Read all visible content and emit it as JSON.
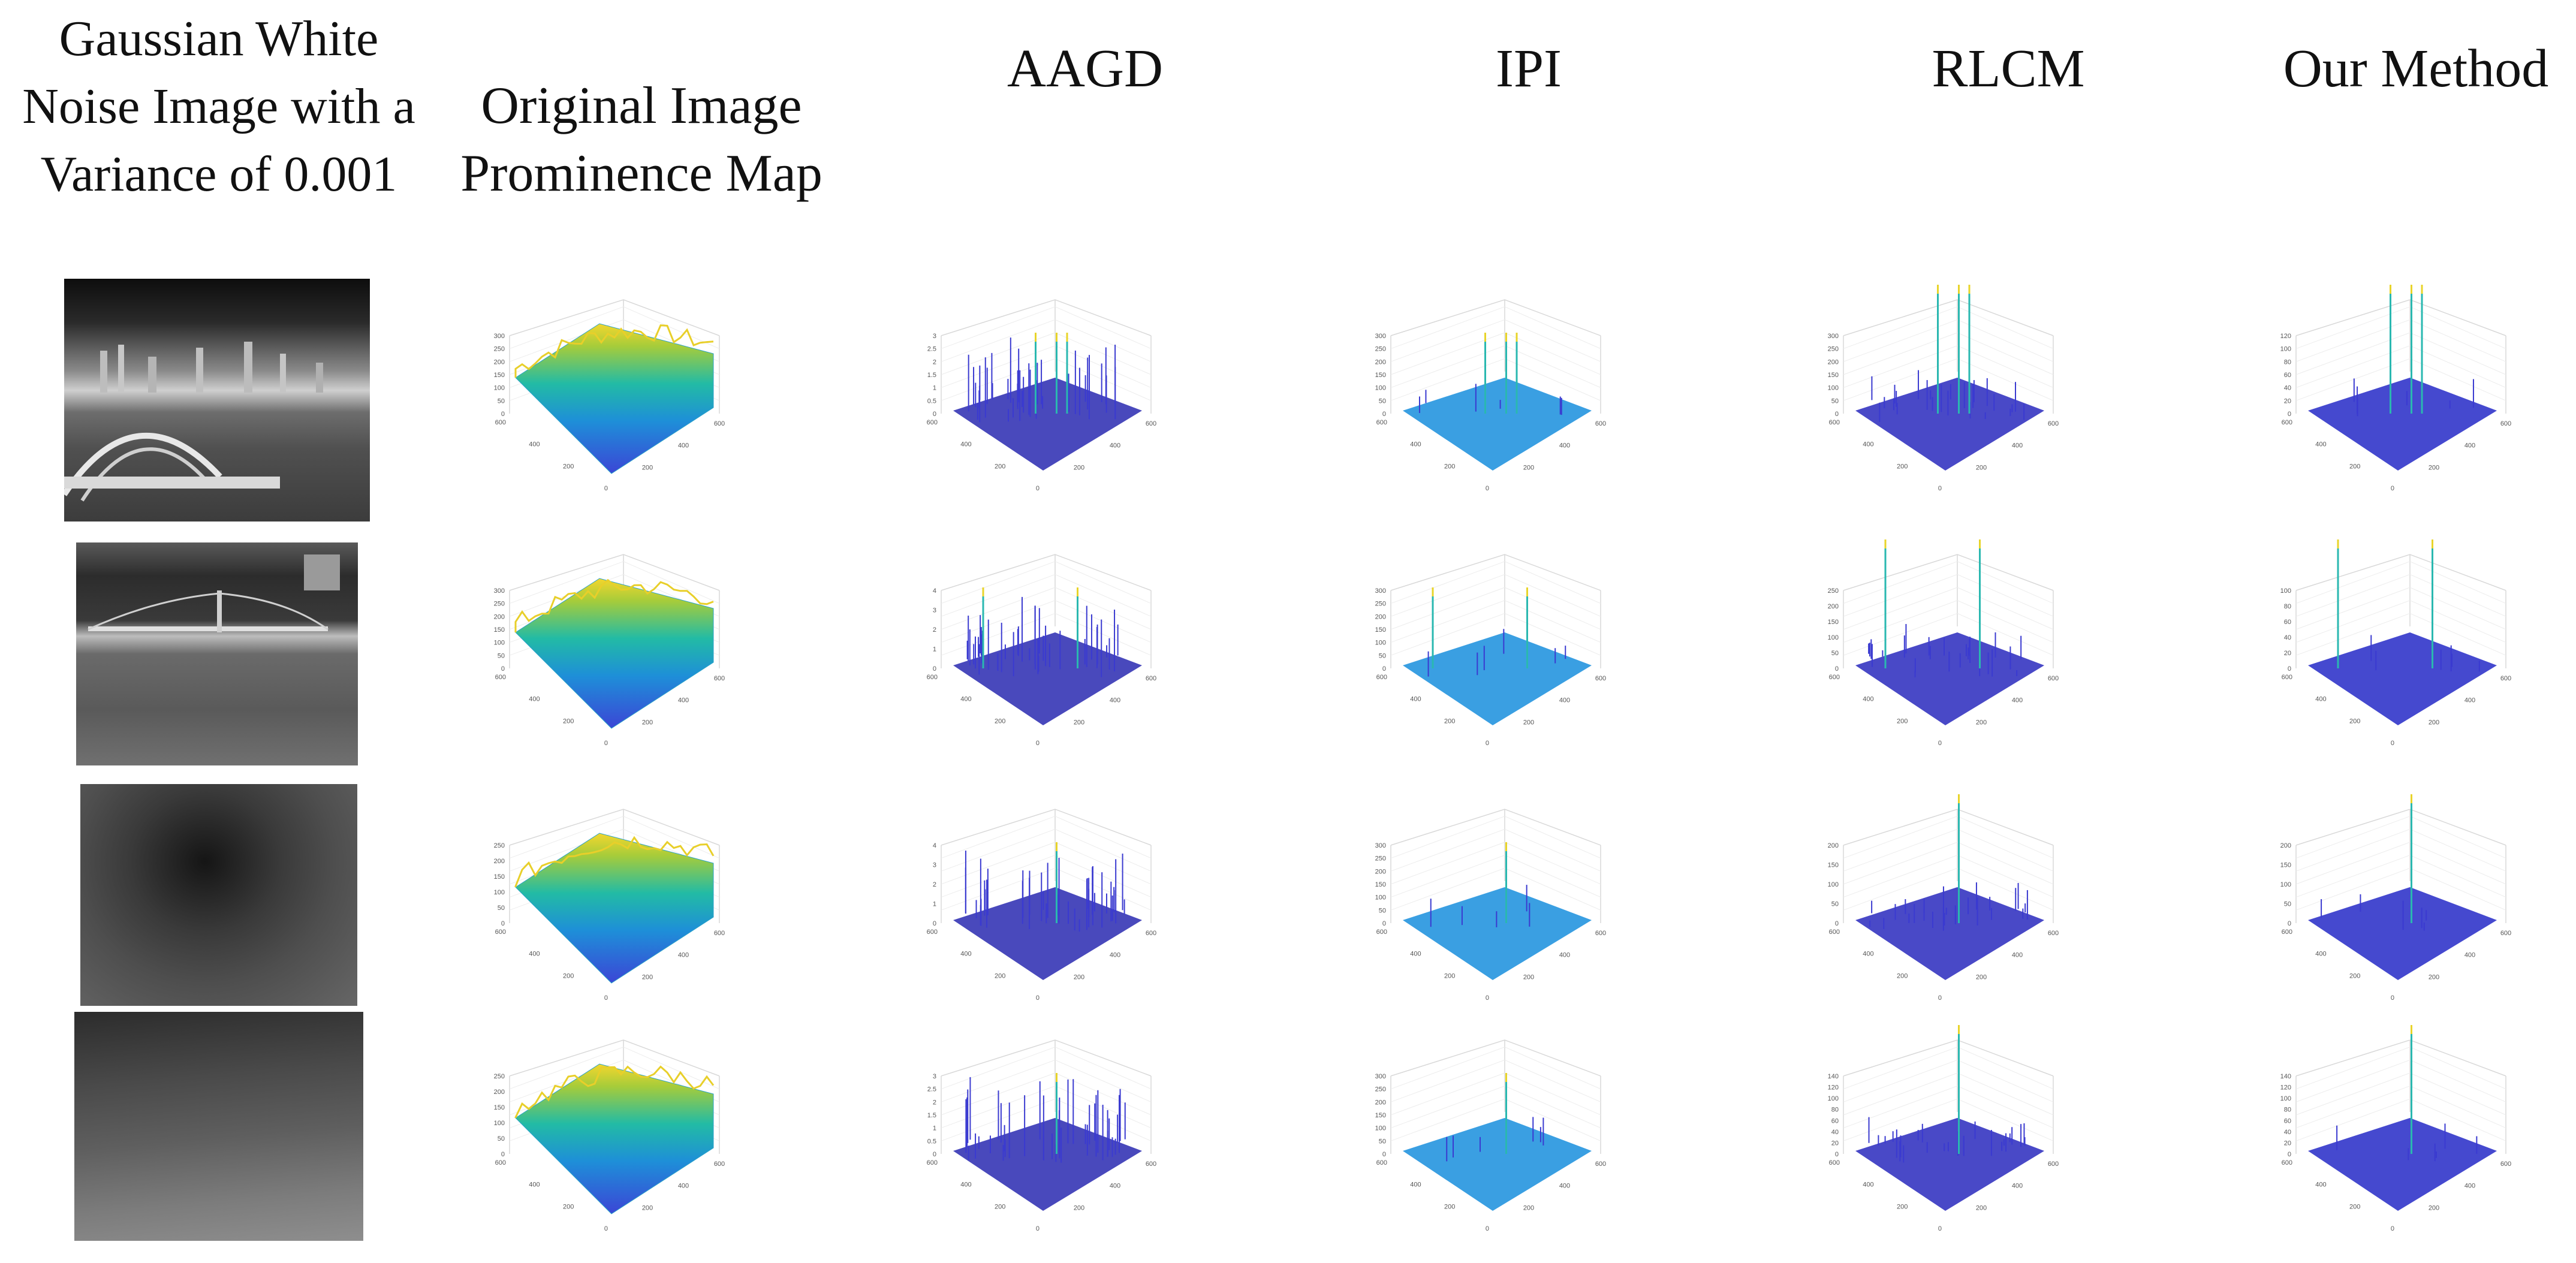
{
  "headers": {
    "col1": "Gaussian White Noise Image with a Variance of 0.001",
    "col2": "Original Image Prominence Map",
    "col3": "AAGD",
    "col4": "IPI",
    "col5": "RLCM",
    "col6": "Our Method"
  },
  "axis_ticks": {
    "r0": {
      "orig": [
        "300",
        "250",
        "200",
        "150",
        "100",
        "50",
        "0"
      ],
      "aagd": [
        "3",
        "2.5",
        "2",
        "1.5",
        "1",
        "0.5",
        "0"
      ],
      "ipi": [
        "300",
        "250",
        "200",
        "150",
        "100",
        "50",
        "0"
      ],
      "rlcm": [
        "300",
        "250",
        "200",
        "150",
        "100",
        "50",
        "0"
      ],
      "ours": [
        "120",
        "100",
        "80",
        "60",
        "40",
        "20",
        "0"
      ]
    },
    "r1": {
      "orig": [
        "300",
        "250",
        "200",
        "150",
        "100",
        "50",
        "0"
      ],
      "aagd": [
        "4",
        "3",
        "2",
        "1",
        "0"
      ],
      "ipi": [
        "300",
        "250",
        "200",
        "150",
        "100",
        "50",
        "0"
      ],
      "rlcm": [
        "250",
        "200",
        "150",
        "100",
        "50",
        "0"
      ],
      "ours": [
        "100",
        "80",
        "60",
        "40",
        "20",
        "0"
      ]
    },
    "r2": {
      "orig": [
        "250",
        "200",
        "150",
        "100",
        "50",
        "0"
      ],
      "aagd": [
        "4",
        "3",
        "2",
        "1",
        "0"
      ],
      "ipi": [
        "300",
        "250",
        "200",
        "150",
        "100",
        "50",
        "0"
      ],
      "rlcm": [
        "200",
        "150",
        "100",
        "50",
        "0"
      ],
      "ours": [
        "200",
        "150",
        "100",
        "50",
        "0"
      ]
    },
    "r3": {
      "orig": [
        "250",
        "200",
        "150",
        "100",
        "50",
        "0"
      ],
      "aagd": [
        "3",
        "2.5",
        "2",
        "1.5",
        "1",
        "0.5",
        "0"
      ],
      "ipi": [
        "300",
        "250",
        "200",
        "150",
        "100",
        "50",
        "0"
      ],
      "rlcm": [
        "140",
        "120",
        "100",
        "80",
        "60",
        "40",
        "20",
        "0"
      ],
      "ours": [
        "140",
        "120",
        "100",
        "80",
        "60",
        "40",
        "20",
        "0"
      ]
    },
    "floor_left": [
      "600",
      "400",
      "200",
      "0"
    ],
    "floor_right": [
      "200",
      "400",
      "600"
    ]
  }
}
